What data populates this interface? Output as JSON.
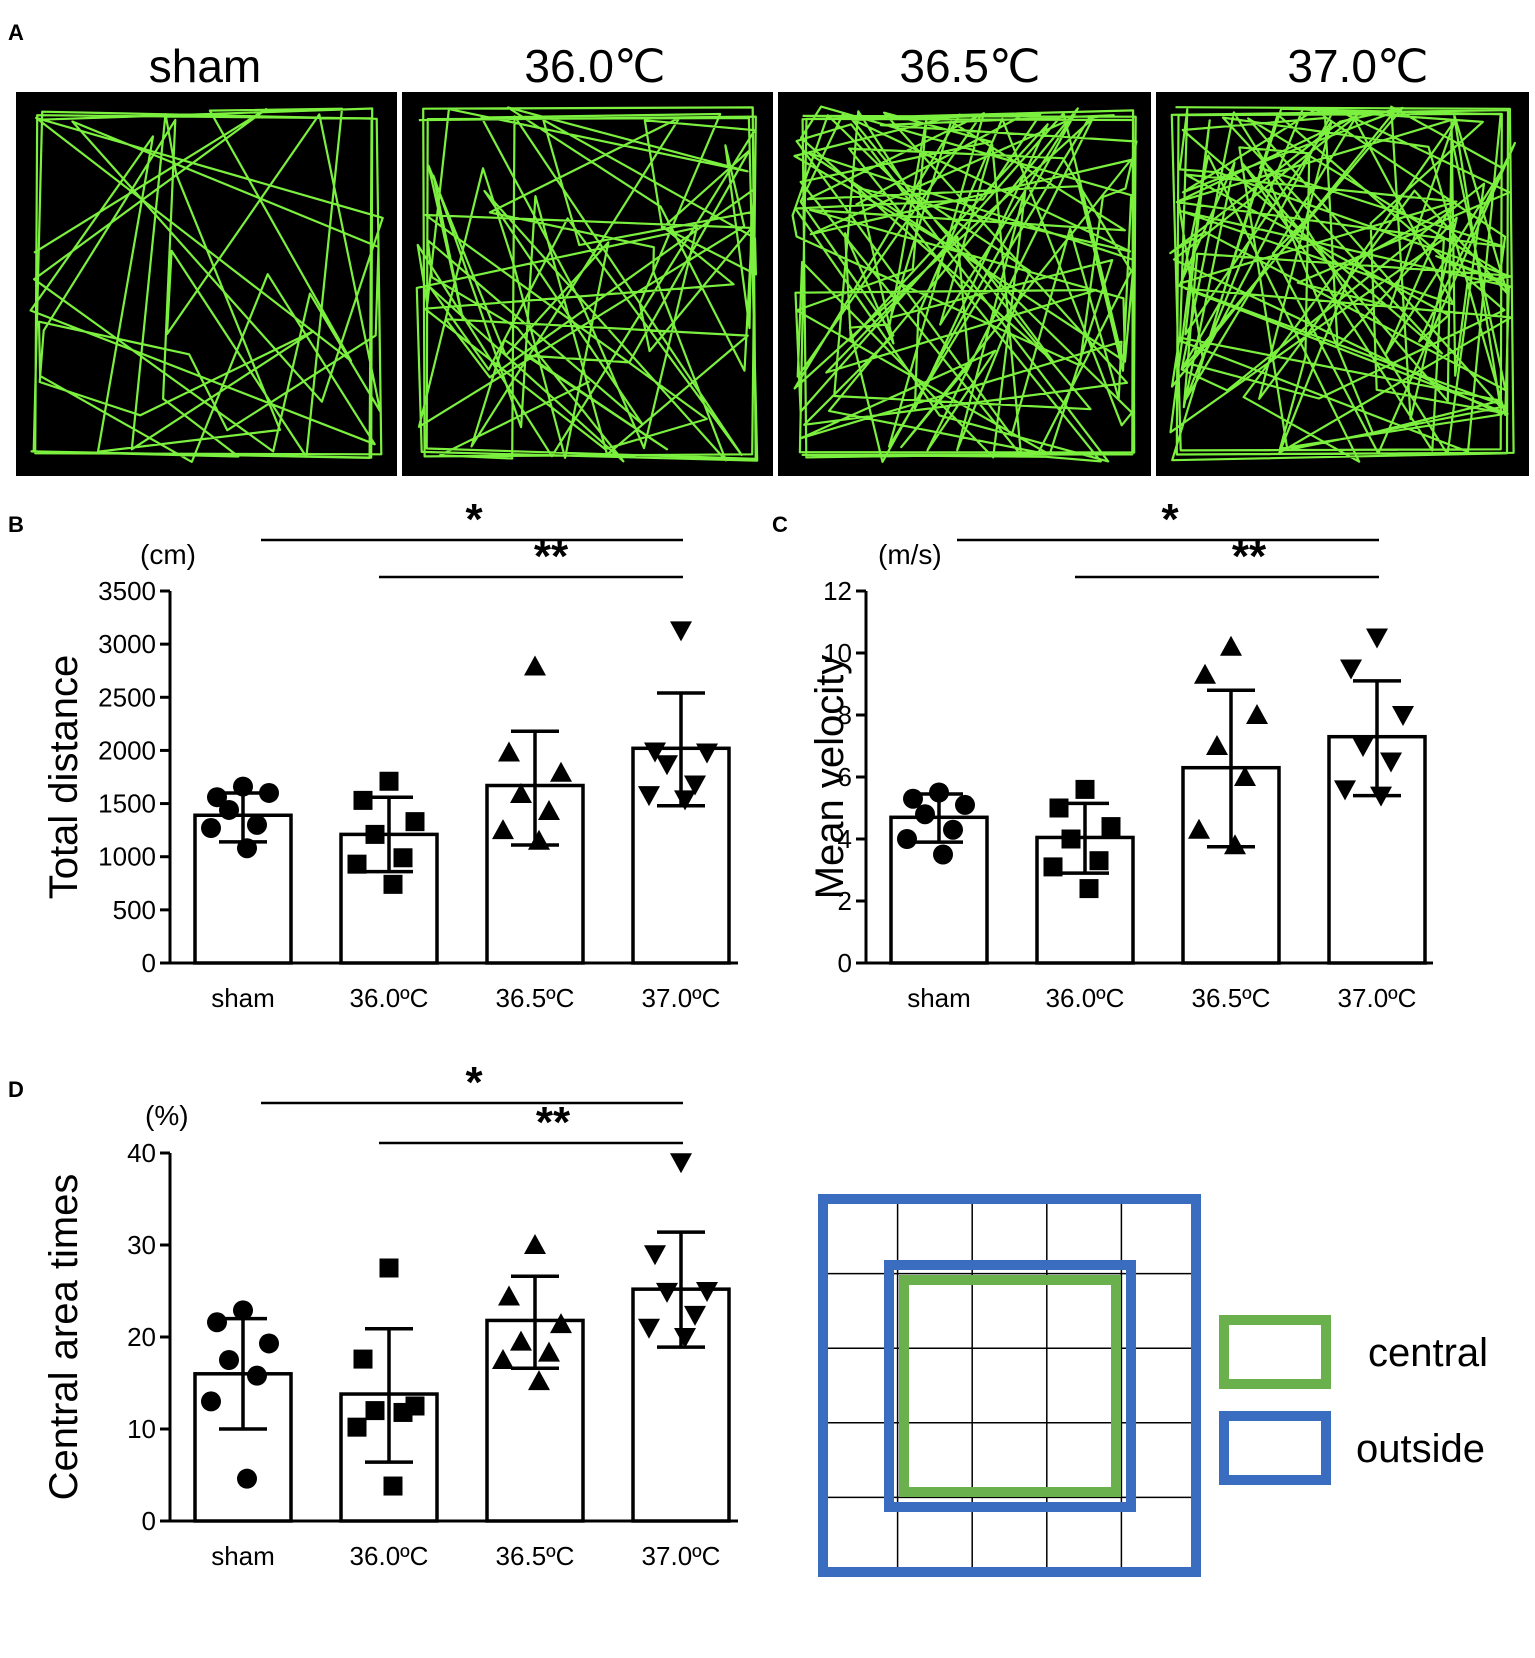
{
  "panels": {
    "A": {
      "letter": "A",
      "conditions": [
        "sham",
        "36.0℃",
        "36.5℃",
        "37.0℃"
      ],
      "arena_color": "#000000",
      "track_color": "#7cf03e"
    },
    "B": {
      "letter": "B",
      "unit": "(cm)",
      "sig": [
        "*",
        "**"
      ],
      "chart_data": {
        "type": "bar",
        "categories": [
          "sham",
          "36.0ºC",
          "36.5ºC",
          "37.0ºC"
        ],
        "values": [
          1390,
          1210,
          1670,
          2020
        ],
        "error_low": [
          1140,
          860,
          1110,
          1480
        ],
        "error_high": [
          1600,
          1560,
          2180,
          2540
        ],
        "points": [
          [
            1660,
            1560,
            1600,
            1440,
            1300,
            1270,
            1080
          ],
          [
            1710,
            1530,
            1330,
            1210,
            990,
            930,
            740
          ],
          [
            2790,
            1980,
            1790,
            1590,
            1430,
            1250,
            1150
          ],
          [
            3130,
            1990,
            1980,
            1870,
            1680,
            1580,
            1540
          ]
        ],
        "markers": [
          "circle",
          "square",
          "triangle-up",
          "triangle-down"
        ],
        "ylabel": "Total distance",
        "ylim": [
          0,
          3500
        ],
        "yticks": [
          0,
          500,
          1000,
          1500,
          2000,
          2500,
          3000,
          3500
        ],
        "significance": [
          {
            "from": "sham",
            "to": "37.0ºC",
            "label": "*"
          },
          {
            "from": "36.0ºC",
            "to": "37.0ºC",
            "label": "**"
          }
        ]
      }
    },
    "C": {
      "letter": "C",
      "unit": "(m/s)",
      "sig": [
        "*",
        "**"
      ],
      "chart_data": {
        "type": "bar",
        "categories": [
          "sham",
          "36.0ºC",
          "36.5ºC",
          "37.0ºC"
        ],
        "values": [
          4.7,
          4.05,
          6.3,
          7.3
        ],
        "error_low": [
          3.9,
          2.9,
          3.75,
          5.4
        ],
        "error_high": [
          5.45,
          5.15,
          8.8,
          9.1
        ],
        "points": [
          [
            5.5,
            5.3,
            5.1,
            4.8,
            4.3,
            4.0,
            3.5
          ],
          [
            5.6,
            5.0,
            4.4,
            4.0,
            3.3,
            3.1,
            2.4
          ],
          [
            10.2,
            9.3,
            8.0,
            7.0,
            6.0,
            4.3,
            3.8
          ],
          [
            10.5,
            9.5,
            8.0,
            7.0,
            6.5,
            5.6,
            5.4
          ]
        ],
        "markers": [
          "circle",
          "square",
          "triangle-up",
          "triangle-down"
        ],
        "ylabel": "Mean velocity",
        "ylim": [
          0,
          12
        ],
        "yticks": [
          0,
          2,
          4,
          6,
          8,
          10,
          12
        ],
        "significance": [
          {
            "from": "sham",
            "to": "37.0ºC",
            "label": "*"
          },
          {
            "from": "36.0ºC",
            "to": "37.0ºC",
            "label": "**"
          }
        ]
      }
    },
    "D": {
      "letter": "D",
      "unit": "(%)",
      "sig": [
        "*",
        "**"
      ],
      "chart_data": {
        "type": "bar",
        "categories": [
          "sham",
          "36.0ºC",
          "36.5ºC",
          "37.0ºC"
        ],
        "values": [
          16.0,
          13.8,
          21.8,
          25.2
        ],
        "error_low": [
          10.0,
          6.4,
          16.6,
          18.9
        ],
        "error_high": [
          22.0,
          20.9,
          26.6,
          31.4
        ],
        "points": [
          [
            22.9,
            21.6,
            19.3,
            17.5,
            15.8,
            13.0,
            4.6
          ],
          [
            27.5,
            17.6,
            12.5,
            12.0,
            11.8,
            10.2,
            3.8
          ],
          [
            30.0,
            24.4,
            21.4,
            19.5,
            18.3,
            17.5,
            15.2
          ],
          [
            39.0,
            29.0,
            25.0,
            24.9,
            22.4,
            21.0,
            20.0
          ]
        ],
        "markers": [
          "circle",
          "square",
          "triangle-up",
          "triangle-down"
        ],
        "ylabel": "Central area times",
        "ylim": [
          0,
          40
        ],
        "yticks": [
          0,
          10,
          20,
          30,
          40
        ],
        "significance": [
          {
            "from": "sham",
            "to": "37.0ºC",
            "label": "*"
          },
          {
            "from": "36.0ºC",
            "to": "37.0ºC",
            "label": "**"
          }
        ]
      },
      "legend": {
        "central_label": "central",
        "outside_label": "outside",
        "central_color": "#6ab04c",
        "outside_color": "#3a6cc0"
      }
    }
  }
}
